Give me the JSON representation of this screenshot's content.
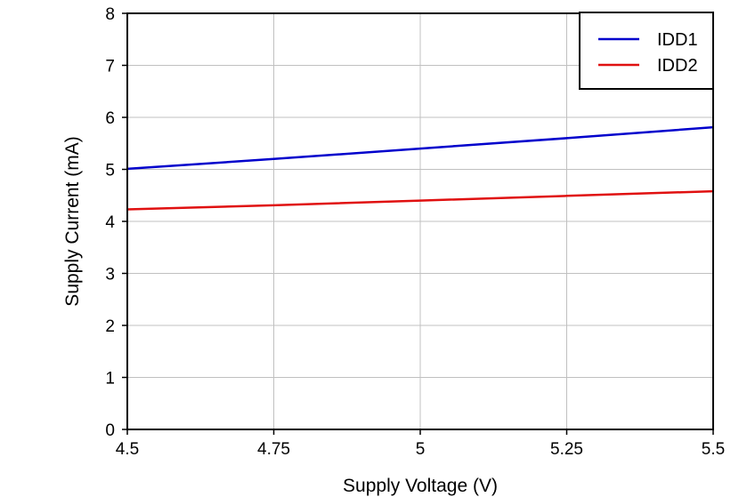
{
  "chart_data": {
    "type": "line",
    "title": "",
    "xlabel": "Supply Voltage (V)",
    "ylabel": "Supply Current (mA)",
    "xlim": [
      4.5,
      5.5
    ],
    "ylim": [
      0,
      8
    ],
    "x_ticks": [
      4.5,
      4.75,
      5,
      5.25,
      5.5
    ],
    "x_tick_labels": [
      "4.5",
      "4.75",
      "5",
      "5.25",
      "5.5"
    ],
    "y_ticks": [
      0,
      1,
      2,
      3,
      4,
      5,
      6,
      7,
      8
    ],
    "y_tick_labels": [
      "0",
      "1",
      "2",
      "3",
      "4",
      "5",
      "6",
      "7",
      "8"
    ],
    "grid": true,
    "legend_position": "top-right",
    "series": [
      {
        "name": "IDD1",
        "color": "#0000cc",
        "x": [
          4.5,
          4.75,
          5,
          5.25,
          5.5
        ],
        "y": [
          5.01,
          5.2,
          5.4,
          5.6,
          5.81
        ]
      },
      {
        "name": "IDD2",
        "color": "#e01010",
        "x": [
          4.5,
          4.75,
          5,
          5.25,
          5.5
        ],
        "y": [
          4.23,
          4.31,
          4.4,
          4.49,
          4.58
        ]
      }
    ]
  }
}
